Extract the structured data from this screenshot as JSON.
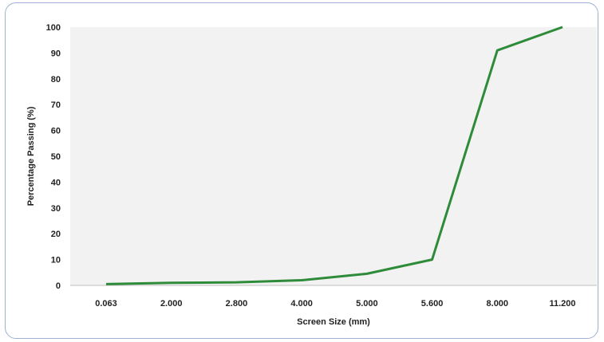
{
  "chart_data": {
    "type": "line",
    "title": "",
    "xlabel": "Screen Size (mm)",
    "ylabel": "Percentage Passing (%)",
    "categories": [
      "0.063",
      "2.000",
      "2.800",
      "4.000",
      "5.000",
      "5.600",
      "8.000",
      "11.200"
    ],
    "series": [
      {
        "values": [
          0.5,
          1,
          1.2,
          2,
          4.5,
          10,
          91,
          100
        ]
      }
    ],
    "ylim": [
      0,
      100
    ],
    "yticks": [
      "0",
      "10",
      "20",
      "30",
      "40",
      "50",
      "60",
      "70",
      "80",
      "90",
      "100"
    ],
    "grid": false,
    "legend": "none",
    "colors": {
      "line": "#2e8b3a",
      "plot_bg": "#f2f2f2",
      "frame_border": "#9fb0d4"
    }
  }
}
